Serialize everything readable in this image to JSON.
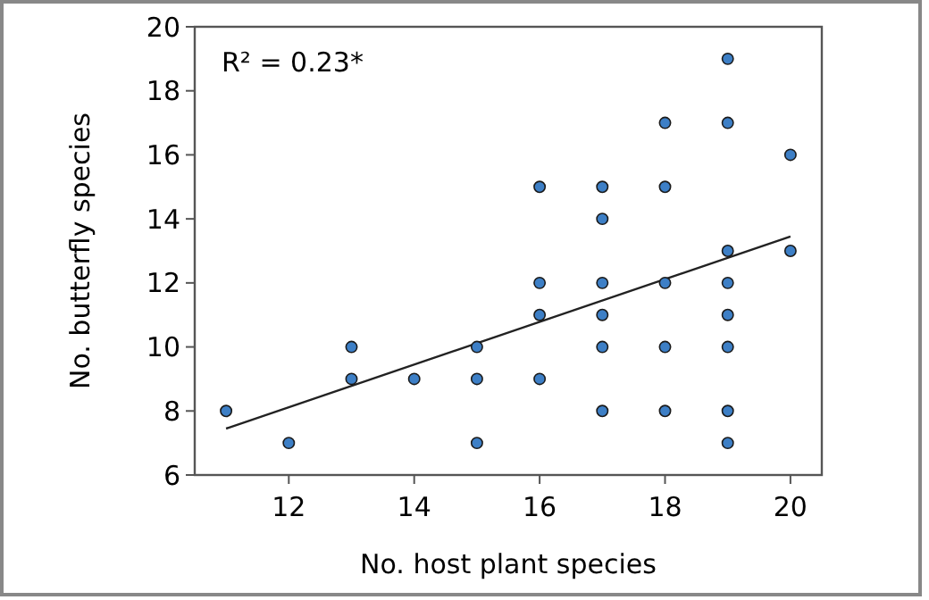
{
  "chart_data": {
    "type": "scatter",
    "xlabel": "No. host plant species",
    "ylabel": "No. butterfly species",
    "annotations": [
      "R² = 0.23*"
    ],
    "xlim": [
      10.5,
      20.5
    ],
    "xticks": [
      12,
      14,
      16,
      18,
      20
    ],
    "ylim": [
      6,
      20
    ],
    "yticks": [
      6,
      8,
      10,
      12,
      14,
      16,
      18,
      20
    ],
    "grid": false,
    "series": [
      {
        "marker": "circle",
        "color": "#3d7fc6",
        "x": [
          11,
          12,
          13,
          13,
          14,
          15,
          15,
          15,
          16,
          16,
          16,
          16,
          17,
          17,
          17,
          17,
          17,
          17,
          18,
          18,
          18,
          18,
          18,
          19,
          19,
          19,
          19,
          19,
          19,
          19,
          19,
          20,
          20
        ],
        "values": [
          8,
          7,
          10,
          9,
          9,
          10,
          9,
          7,
          15,
          12,
          11,
          9,
          15,
          14,
          12,
          11,
          10,
          8,
          17,
          15,
          12,
          10,
          8,
          19,
          17,
          13,
          12,
          11,
          10,
          8,
          7,
          16,
          13
        ]
      },
      {
        "type": "line",
        "color": "#222222",
        "line_style": "solid",
        "x": [
          11,
          20
        ],
        "values": [
          7.45,
          13.45
        ]
      }
    ]
  }
}
